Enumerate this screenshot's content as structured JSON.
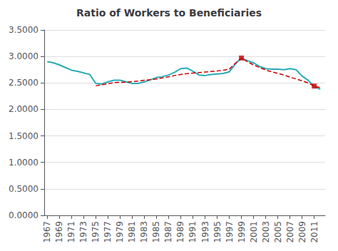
{
  "chart_data": {
    "type": "line",
    "title": "Ratio of Workers to Beneficiaries",
    "x": [
      1967,
      1968,
      1969,
      1970,
      1971,
      1972,
      1973,
      1974,
      1975,
      1976,
      1977,
      1978,
      1979,
      1980,
      1981,
      1982,
      1983,
      1984,
      1985,
      1986,
      1987,
      1988,
      1989,
      1990,
      1991,
      1992,
      1993,
      1994,
      1995,
      1996,
      1997,
      1998,
      1999,
      2000,
      2001,
      2002,
      2003,
      2004,
      2005,
      2006,
      2007,
      2008,
      2009,
      2010,
      2011,
      2012
    ],
    "series": [
      {
        "color": "#29ABB8",
        "line_style": "solid",
        "values": [
          2.9,
          2.88,
          2.84,
          2.79,
          2.74,
          2.72,
          2.69,
          2.66,
          2.49,
          2.48,
          2.52,
          2.55,
          2.55,
          2.52,
          2.49,
          2.49,
          2.52,
          2.56,
          2.6,
          2.62,
          2.65,
          2.7,
          2.77,
          2.78,
          2.72,
          2.65,
          2.64,
          2.66,
          2.67,
          2.68,
          2.71,
          2.86,
          2.97,
          2.92,
          2.88,
          2.81,
          2.77,
          2.76,
          2.76,
          2.75,
          2.77,
          2.75,
          2.63,
          2.55,
          2.43,
          2.38
        ]
      },
      {
        "color": "#CC0000",
        "line_style": "dashed",
        "x": [
          1975,
          1976,
          1977,
          1978,
          1979,
          1980,
          1981,
          1982,
          1983,
          1984,
          1985,
          1986,
          1987,
          1988,
          1989,
          1990,
          1991,
          1992,
          1993,
          1994,
          1995,
          1996,
          1997,
          1998,
          1999,
          2000,
          2001,
          2002,
          2003,
          2004,
          2005,
          2006,
          2007,
          2008,
          2009,
          2010,
          2011,
          2012
        ],
        "values": [
          2.445,
          2.465,
          2.485,
          2.505,
          2.51,
          2.515,
          2.525,
          2.535,
          2.55,
          2.56,
          2.575,
          2.595,
          2.615,
          2.64,
          2.66,
          2.675,
          2.685,
          2.695,
          2.705,
          2.715,
          2.725,
          2.74,
          2.76,
          2.87,
          2.97,
          2.9,
          2.84,
          2.79,
          2.745,
          2.71,
          2.68,
          2.65,
          2.61,
          2.575,
          2.54,
          2.5,
          2.44,
          2.41
        ]
      },
      {
        "type": "scatter",
        "marker": "square",
        "color": "#CC0000",
        "x": [
          1999,
          2011
        ],
        "values": [
          2.97,
          2.44
        ]
      }
    ],
    "xlim": [
      1966.5,
      2012.8
    ],
    "xticks": [
      1967,
      1969,
      1971,
      1973,
      1975,
      1977,
      1979,
      1981,
      1983,
      1985,
      1987,
      1989,
      1991,
      1993,
      1995,
      1997,
      1999,
      2001,
      2003,
      2005,
      2007,
      2009,
      2011
    ],
    "ylim": [
      0.0,
      3.5
    ],
    "yticks": [
      {
        "value": 0.0,
        "label": "0.0000"
      },
      {
        "value": 0.5,
        "label": "0.5000"
      },
      {
        "value": 1.0,
        "label": "1.0000"
      },
      {
        "value": 1.5,
        "label": "1.5000"
      },
      {
        "value": 2.0,
        "label": "2.0000"
      },
      {
        "value": 2.5,
        "label": "2.5000"
      },
      {
        "value": 3.0,
        "label": "3.0000"
      },
      {
        "value": 3.5,
        "label": "3.5000"
      }
    ],
    "grid": true
  }
}
